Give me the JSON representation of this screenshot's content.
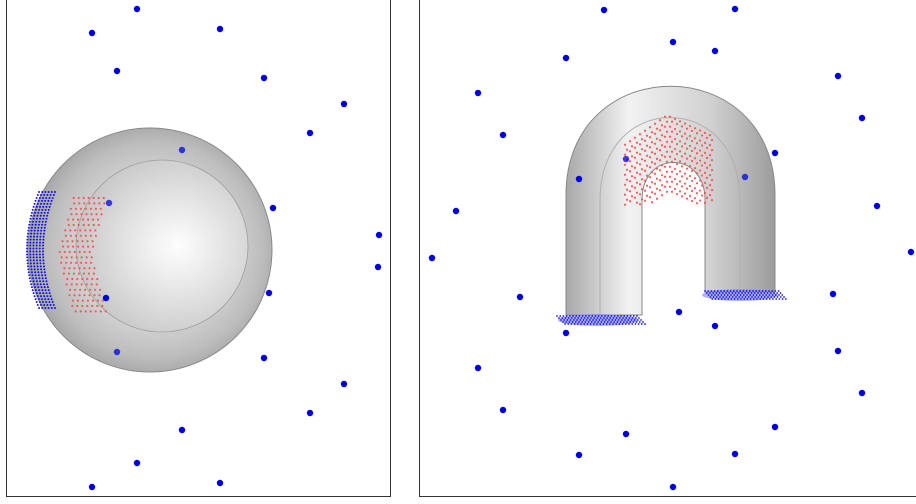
{
  "figure": {
    "panels": [
      {
        "id": "left",
        "object": "sphere",
        "point_color": "#0000e6",
        "contact_color": "#ff4a4a",
        "surface_color": "#c8c8c8"
      },
      {
        "id": "right",
        "object": "u-tube",
        "point_color": "#0000e6",
        "contact_color": "#ff4a4a",
        "surface_color": "#c8c8c8",
        "end_cap_color": "#8f8fff"
      }
    ]
  }
}
